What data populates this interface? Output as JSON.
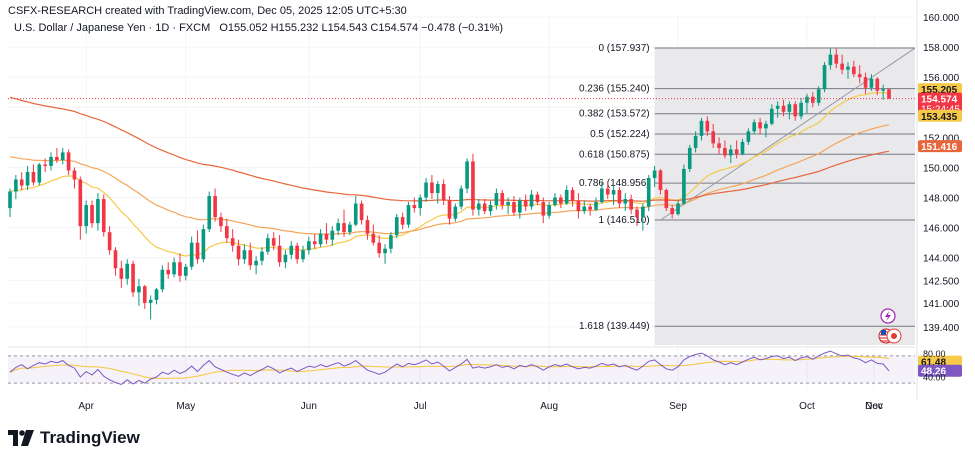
{
  "header": {
    "attribution": "CSFX-RESEARCH created with TradingView.com, Dec 05, 2025 12:05 UTC+5:30",
    "instrument": "U.S. Dollar / Japanese Yen · 1D · FXCM",
    "ohlc": "O155.052  H155.232  L154.543  C154.574  −0.478 (−0.31%)"
  },
  "footer": {
    "brand": "TradingView"
  },
  "colors": {
    "up": "#089981",
    "down": "#f23645",
    "ema_fast": "#f7c948",
    "ema_mid": "#f5a55a",
    "ema_slow": "#e8663c",
    "rsi": "#7e57c2",
    "rsi_ma": "#f7c948",
    "fib_zone": "#e9e9eb",
    "fib_line": "#787b86"
  },
  "icons": [
    "lightning-icon",
    "us-flag-icon",
    "japan-flag-icon"
  ],
  "chart_data": {
    "type": "candlestick",
    "x_months": [
      "Apr",
      "May",
      "Jun",
      "Jul",
      "Aug",
      "Sep",
      "Oct",
      "Nov",
      "Dec"
    ],
    "y_ticks": [
      "160.000",
      "158.000",
      "156.000",
      "154.000",
      "152.000",
      "150.000",
      "148.000",
      "146.000",
      "144.000",
      "142.500",
      "141.000",
      "139.400"
    ],
    "ylim": [
      138.2,
      160.2
    ],
    "price_labels": [
      {
        "text": "155.205",
        "value": 155.205,
        "color": "#f7c948"
      },
      {
        "text": "154.574",
        "value": 154.574,
        "color": "#f23645",
        "countdown": "15:24:45"
      },
      {
        "text": "153.435",
        "value": 153.435,
        "color": "#f7c948"
      },
      {
        "text": "151.416",
        "value": 151.416,
        "color": "#e8663c"
      }
    ],
    "fib_levels": [
      {
        "label": "0 (157.937)",
        "value": 157.937
      },
      {
        "label": "0.236 (155.240)",
        "value": 155.24
      },
      {
        "label": "0.382 (153.572)",
        "value": 153.572
      },
      {
        "label": "0.5 (152.224)",
        "value": 152.224
      },
      {
        "label": "0.618 (150.875)",
        "value": 150.875
      },
      {
        "label": "0.786 (148.956)",
        "value": 148.956
      },
      {
        "label": "1 (146.510)",
        "value": 146.51
      },
      {
        "label": "1.618 (139.449)",
        "value": 139.449
      }
    ],
    "candles": [
      {
        "o": 147.3,
        "h": 148.6,
        "l": 146.7,
        "c": 148.4
      },
      {
        "o": 148.4,
        "h": 149.5,
        "l": 147.9,
        "c": 149.2
      },
      {
        "o": 149.2,
        "h": 149.7,
        "l": 148.5,
        "c": 148.8
      },
      {
        "o": 148.8,
        "h": 150.1,
        "l": 148.5,
        "c": 149.7
      },
      {
        "o": 149.7,
        "h": 150.2,
        "l": 148.8,
        "c": 149.0
      },
      {
        "o": 149.0,
        "h": 150.3,
        "l": 148.8,
        "c": 150.2
      },
      {
        "o": 150.2,
        "h": 150.6,
        "l": 149.7,
        "c": 150.1
      },
      {
        "o": 150.1,
        "h": 151.0,
        "l": 149.8,
        "c": 150.7
      },
      {
        "o": 150.7,
        "h": 151.3,
        "l": 150.3,
        "c": 150.5
      },
      {
        "o": 150.5,
        "h": 151.3,
        "l": 150.2,
        "c": 151.0
      },
      {
        "o": 151.0,
        "h": 151.2,
        "l": 149.5,
        "c": 149.8
      },
      {
        "o": 149.8,
        "h": 150.0,
        "l": 148.6,
        "c": 149.2
      },
      {
        "o": 149.2,
        "h": 149.4,
        "l": 145.2,
        "c": 146.1
      },
      {
        "o": 146.1,
        "h": 147.8,
        "l": 145.6,
        "c": 147.5
      },
      {
        "o": 147.5,
        "h": 147.8,
        "l": 146.0,
        "c": 146.3
      },
      {
        "o": 146.3,
        "h": 148.3,
        "l": 145.8,
        "c": 147.9
      },
      {
        "o": 147.9,
        "h": 148.2,
        "l": 145.4,
        "c": 145.7
      },
      {
        "o": 145.7,
        "h": 146.1,
        "l": 144.2,
        "c": 144.5
      },
      {
        "o": 144.5,
        "h": 144.7,
        "l": 142.8,
        "c": 143.3
      },
      {
        "o": 143.3,
        "h": 143.8,
        "l": 142.0,
        "c": 142.6
      },
      {
        "o": 142.6,
        "h": 143.9,
        "l": 142.2,
        "c": 143.6
      },
      {
        "o": 143.6,
        "h": 143.8,
        "l": 141.4,
        "c": 141.7
      },
      {
        "o": 141.7,
        "h": 142.6,
        "l": 140.8,
        "c": 142.1
      },
      {
        "o": 142.1,
        "h": 142.2,
        "l": 140.6,
        "c": 141.0
      },
      {
        "o": 141.0,
        "h": 141.5,
        "l": 139.9,
        "c": 141.2
      },
      {
        "o": 141.2,
        "h": 142.0,
        "l": 140.9,
        "c": 141.9
      },
      {
        "o": 141.9,
        "h": 143.5,
        "l": 141.7,
        "c": 143.2
      },
      {
        "o": 143.2,
        "h": 143.7,
        "l": 142.6,
        "c": 142.9
      },
      {
        "o": 142.9,
        "h": 144.0,
        "l": 142.7,
        "c": 143.7
      },
      {
        "o": 143.7,
        "h": 144.3,
        "l": 142.4,
        "c": 142.8
      },
      {
        "o": 142.8,
        "h": 143.6,
        "l": 142.5,
        "c": 143.4
      },
      {
        "o": 143.4,
        "h": 145.4,
        "l": 143.2,
        "c": 145.0
      },
      {
        "o": 145.0,
        "h": 145.8,
        "l": 143.6,
        "c": 143.9
      },
      {
        "o": 143.9,
        "h": 146.2,
        "l": 143.7,
        "c": 145.9
      },
      {
        "o": 145.9,
        "h": 148.4,
        "l": 145.7,
        "c": 148.1
      },
      {
        "o": 148.1,
        "h": 148.6,
        "l": 146.4,
        "c": 146.7
      },
      {
        "o": 146.7,
        "h": 147.0,
        "l": 145.7,
        "c": 146.1
      },
      {
        "o": 146.1,
        "h": 146.6,
        "l": 145.0,
        "c": 145.3
      },
      {
        "o": 145.3,
        "h": 145.9,
        "l": 144.4,
        "c": 144.8
      },
      {
        "o": 144.8,
        "h": 145.2,
        "l": 143.5,
        "c": 143.9
      },
      {
        "o": 143.9,
        "h": 144.9,
        "l": 143.6,
        "c": 144.5
      },
      {
        "o": 144.5,
        "h": 145.0,
        "l": 143.2,
        "c": 143.5
      },
      {
        "o": 143.5,
        "h": 144.1,
        "l": 142.9,
        "c": 143.8
      },
      {
        "o": 143.8,
        "h": 144.7,
        "l": 143.5,
        "c": 144.4
      },
      {
        "o": 144.4,
        "h": 145.6,
        "l": 144.2,
        "c": 145.3
      },
      {
        "o": 145.3,
        "h": 145.7,
        "l": 144.5,
        "c": 144.8
      },
      {
        "o": 144.8,
        "h": 145.5,
        "l": 143.4,
        "c": 143.7
      },
      {
        "o": 143.7,
        "h": 144.5,
        "l": 143.3,
        "c": 144.2
      },
      {
        "o": 144.2,
        "h": 145.1,
        "l": 143.9,
        "c": 144.8
      },
      {
        "o": 144.8,
        "h": 145.0,
        "l": 143.6,
        "c": 143.9
      },
      {
        "o": 143.9,
        "h": 144.8,
        "l": 143.7,
        "c": 144.5
      },
      {
        "o": 144.5,
        "h": 145.4,
        "l": 144.2,
        "c": 145.1
      },
      {
        "o": 145.1,
        "h": 145.6,
        "l": 144.6,
        "c": 144.9
      },
      {
        "o": 144.9,
        "h": 145.9,
        "l": 144.7,
        "c": 145.6
      },
      {
        "o": 145.6,
        "h": 146.3,
        "l": 144.9,
        "c": 145.2
      },
      {
        "o": 145.2,
        "h": 146.1,
        "l": 144.8,
        "c": 145.8
      },
      {
        "o": 145.8,
        "h": 146.6,
        "l": 145.5,
        "c": 146.3
      },
      {
        "o": 146.3,
        "h": 147.2,
        "l": 145.4,
        "c": 145.7
      },
      {
        "o": 145.7,
        "h": 146.4,
        "l": 145.5,
        "c": 146.2
      },
      {
        "o": 146.2,
        "h": 148.1,
        "l": 146.1,
        "c": 147.6
      },
      {
        "o": 147.6,
        "h": 147.8,
        "l": 146.2,
        "c": 146.5
      },
      {
        "o": 146.5,
        "h": 146.8,
        "l": 145.2,
        "c": 145.6
      },
      {
        "o": 145.6,
        "h": 146.2,
        "l": 144.8,
        "c": 145.0
      },
      {
        "o": 145.0,
        "h": 145.5,
        "l": 144.0,
        "c": 144.3
      },
      {
        "o": 144.3,
        "h": 144.9,
        "l": 143.6,
        "c": 144.6
      },
      {
        "o": 144.6,
        "h": 145.7,
        "l": 144.3,
        "c": 145.5
      },
      {
        "o": 145.5,
        "h": 146.9,
        "l": 145.3,
        "c": 146.7
      },
      {
        "o": 146.7,
        "h": 147.0,
        "l": 145.9,
        "c": 146.2
      },
      {
        "o": 146.2,
        "h": 147.7,
        "l": 146.0,
        "c": 147.5
      },
      {
        "o": 147.5,
        "h": 148.0,
        "l": 147.0,
        "c": 147.3
      },
      {
        "o": 147.3,
        "h": 148.2,
        "l": 146.8,
        "c": 148.0
      },
      {
        "o": 148.0,
        "h": 149.3,
        "l": 147.7,
        "c": 149.0
      },
      {
        "o": 149.0,
        "h": 149.5,
        "l": 147.9,
        "c": 148.3
      },
      {
        "o": 148.3,
        "h": 149.1,
        "l": 147.6,
        "c": 148.9
      },
      {
        "o": 148.9,
        "h": 149.2,
        "l": 147.5,
        "c": 147.8
      },
      {
        "o": 147.8,
        "h": 148.1,
        "l": 146.2,
        "c": 146.6
      },
      {
        "o": 146.6,
        "h": 147.6,
        "l": 146.4,
        "c": 147.4
      },
      {
        "o": 147.4,
        "h": 148.8,
        "l": 147.2,
        "c": 148.6
      },
      {
        "o": 148.6,
        "h": 150.6,
        "l": 148.3,
        "c": 150.4
      },
      {
        "o": 150.4,
        "h": 150.9,
        "l": 146.8,
        "c": 147.2
      },
      {
        "o": 147.2,
        "h": 147.9,
        "l": 146.8,
        "c": 147.6
      },
      {
        "o": 147.6,
        "h": 147.9,
        "l": 146.9,
        "c": 147.1
      },
      {
        "o": 147.1,
        "h": 147.8,
        "l": 146.8,
        "c": 147.5
      },
      {
        "o": 147.5,
        "h": 148.6,
        "l": 147.2,
        "c": 148.3
      },
      {
        "o": 148.3,
        "h": 148.5,
        "l": 147.2,
        "c": 147.5
      },
      {
        "o": 147.5,
        "h": 148.0,
        "l": 146.9,
        "c": 147.7
      },
      {
        "o": 147.7,
        "h": 148.1,
        "l": 146.8,
        "c": 147.0
      },
      {
        "o": 147.0,
        "h": 148.0,
        "l": 146.6,
        "c": 147.8
      },
      {
        "o": 147.8,
        "h": 148.2,
        "l": 147.1,
        "c": 147.4
      },
      {
        "o": 147.4,
        "h": 148.5,
        "l": 147.2,
        "c": 148.2
      },
      {
        "o": 148.2,
        "h": 148.4,
        "l": 147.5,
        "c": 147.7
      },
      {
        "o": 147.7,
        "h": 148.0,
        "l": 146.3,
        "c": 146.8
      },
      {
        "o": 146.8,
        "h": 147.7,
        "l": 146.6,
        "c": 147.5
      },
      {
        "o": 147.5,
        "h": 148.3,
        "l": 147.4,
        "c": 148.0
      },
      {
        "o": 148.0,
        "h": 148.2,
        "l": 147.3,
        "c": 147.6
      },
      {
        "o": 147.6,
        "h": 148.8,
        "l": 147.5,
        "c": 148.5
      },
      {
        "o": 148.5,
        "h": 148.7,
        "l": 147.4,
        "c": 147.8
      },
      {
        "o": 147.8,
        "h": 148.3,
        "l": 146.6,
        "c": 147.1
      },
      {
        "o": 147.1,
        "h": 147.8,
        "l": 146.9,
        "c": 147.4
      },
      {
        "o": 147.4,
        "h": 147.6,
        "l": 146.8,
        "c": 147.2
      },
      {
        "o": 147.2,
        "h": 148.0,
        "l": 147.1,
        "c": 147.7
      },
      {
        "o": 147.7,
        "h": 149.0,
        "l": 147.6,
        "c": 148.6
      },
      {
        "o": 148.6,
        "h": 149.1,
        "l": 147.9,
        "c": 148.2
      },
      {
        "o": 148.2,
        "h": 148.8,
        "l": 147.5,
        "c": 148.5
      },
      {
        "o": 148.5,
        "h": 148.7,
        "l": 147.3,
        "c": 147.6
      },
      {
        "o": 147.6,
        "h": 148.3,
        "l": 147.1,
        "c": 147.9
      },
      {
        "o": 147.9,
        "h": 148.2,
        "l": 146.9,
        "c": 147.2
      },
      {
        "o": 147.2,
        "h": 147.4,
        "l": 146.1,
        "c": 146.7
      },
      {
        "o": 146.7,
        "h": 147.6,
        "l": 145.8,
        "c": 147.4
      },
      {
        "o": 147.4,
        "h": 149.5,
        "l": 147.1,
        "c": 149.3
      },
      {
        "o": 149.3,
        "h": 150.1,
        "l": 148.7,
        "c": 149.8
      },
      {
        "o": 149.8,
        "h": 149.9,
        "l": 148.2,
        "c": 148.5
      },
      {
        "o": 148.5,
        "h": 148.6,
        "l": 147.1,
        "c": 147.3
      },
      {
        "o": 147.3,
        "h": 147.5,
        "l": 146.6,
        "c": 146.9
      },
      {
        "o": 146.9,
        "h": 147.8,
        "l": 146.8,
        "c": 147.6
      },
      {
        "o": 147.6,
        "h": 150.2,
        "l": 147.5,
        "c": 149.9
      },
      {
        "o": 149.9,
        "h": 151.5,
        "l": 149.7,
        "c": 151.3
      },
      {
        "o": 151.3,
        "h": 152.4,
        "l": 151.0,
        "c": 152.1
      },
      {
        "o": 152.1,
        "h": 153.3,
        "l": 151.8,
        "c": 153.1
      },
      {
        "o": 153.1,
        "h": 153.4,
        "l": 152.1,
        "c": 152.4
      },
      {
        "o": 152.4,
        "h": 152.9,
        "l": 151.3,
        "c": 151.6
      },
      {
        "o": 151.6,
        "h": 152.0,
        "l": 150.9,
        "c": 151.3
      },
      {
        "o": 151.3,
        "h": 151.8,
        "l": 150.6,
        "c": 150.8
      },
      {
        "o": 150.8,
        "h": 151.5,
        "l": 150.3,
        "c": 151.2
      },
      {
        "o": 151.2,
        "h": 151.8,
        "l": 150.6,
        "c": 150.9
      },
      {
        "o": 150.9,
        "h": 151.9,
        "l": 150.8,
        "c": 151.7
      },
      {
        "o": 151.7,
        "h": 152.6,
        "l": 151.5,
        "c": 152.4
      },
      {
        "o": 152.4,
        "h": 153.2,
        "l": 152.2,
        "c": 153.0
      },
      {
        "o": 153.0,
        "h": 153.3,
        "l": 152.2,
        "c": 152.6
      },
      {
        "o": 152.6,
        "h": 153.1,
        "l": 152.0,
        "c": 152.9
      },
      {
        "o": 152.9,
        "h": 154.2,
        "l": 152.8,
        "c": 153.9
      },
      {
        "o": 153.9,
        "h": 154.4,
        "l": 153.3,
        "c": 154.1
      },
      {
        "o": 154.1,
        "h": 154.5,
        "l": 153.4,
        "c": 153.7
      },
      {
        "o": 153.7,
        "h": 154.4,
        "l": 153.2,
        "c": 154.2
      },
      {
        "o": 154.2,
        "h": 154.4,
        "l": 153.1,
        "c": 153.4
      },
      {
        "o": 153.4,
        "h": 154.6,
        "l": 153.2,
        "c": 154.3
      },
      {
        "o": 154.3,
        "h": 154.9,
        "l": 153.6,
        "c": 154.7
      },
      {
        "o": 154.7,
        "h": 155.0,
        "l": 154.0,
        "c": 154.3
      },
      {
        "o": 154.3,
        "h": 155.4,
        "l": 154.1,
        "c": 155.2
      },
      {
        "o": 155.2,
        "h": 157.0,
        "l": 155.0,
        "c": 156.8
      },
      {
        "o": 156.8,
        "h": 157.9,
        "l": 156.5,
        "c": 157.5
      },
      {
        "o": 157.5,
        "h": 157.9,
        "l": 156.6,
        "c": 156.9
      },
      {
        "o": 156.9,
        "h": 157.5,
        "l": 156.2,
        "c": 156.5
      },
      {
        "o": 156.5,
        "h": 157.0,
        "l": 155.9,
        "c": 156.7
      },
      {
        "o": 156.7,
        "h": 157.1,
        "l": 156.0,
        "c": 156.2
      },
      {
        "o": 156.2,
        "h": 156.8,
        "l": 155.6,
        "c": 156.0
      },
      {
        "o": 156.0,
        "h": 156.3,
        "l": 154.9,
        "c": 155.3
      },
      {
        "o": 155.3,
        "h": 156.2,
        "l": 155.1,
        "c": 155.9
      },
      {
        "o": 155.9,
        "h": 156.0,
        "l": 154.8,
        "c": 155.1
      },
      {
        "o": 155.1,
        "h": 155.5,
        "l": 154.5,
        "c": 155.2
      },
      {
        "o": 155.2,
        "h": 155.23,
        "l": 154.54,
        "c": 154.57
      }
    ],
    "rsi": {
      "ylim": [
        20,
        80
      ],
      "labels": [
        {
          "text": "61.48",
          "value": 61.48,
          "color": "#f7c948"
        },
        {
          "text": "48.26",
          "value": 48.26,
          "color": "#7e57c2"
        }
      ],
      "bands": [
        30,
        70
      ],
      "values": [
        46,
        53,
        57,
        51,
        56,
        60,
        58,
        62,
        60,
        63,
        56,
        52,
        39,
        47,
        42,
        50,
        40,
        35,
        31,
        28,
        35,
        29,
        34,
        30,
        36,
        39,
        46,
        43,
        49,
        44,
        48,
        55,
        47,
        56,
        63,
        54,
        50,
        46,
        43,
        40,
        45,
        41,
        46,
        50,
        55,
        51,
        45,
        49,
        52,
        47,
        51,
        55,
        53,
        57,
        54,
        57,
        60,
        55,
        58,
        63,
        56,
        49,
        46,
        43,
        46,
        52,
        58,
        54,
        59,
        57,
        60,
        64,
        58,
        61,
        55,
        48,
        53,
        58,
        65,
        52,
        54,
        52,
        54,
        57,
        53,
        55,
        51,
        56,
        54,
        57,
        54,
        49,
        54,
        57,
        55,
        58,
        54,
        51,
        53,
        52,
        55,
        59,
        56,
        58,
        54,
        56,
        52,
        49,
        55,
        62,
        64,
        57,
        51,
        49,
        54,
        64,
        69,
        72,
        74,
        70,
        64,
        61,
        57,
        60,
        57,
        61,
        65,
        68,
        64,
        66,
        69,
        70,
        66,
        68,
        63,
        67,
        69,
        65,
        70,
        74,
        77,
        73,
        70,
        71,
        67,
        65,
        60,
        64,
        59,
        58,
        48
      ]
    }
  }
}
